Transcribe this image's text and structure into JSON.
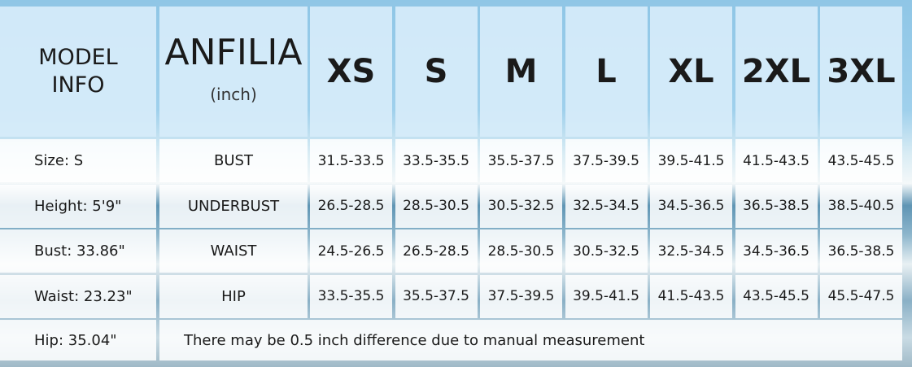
{
  "header": {
    "model_info": "MODEL INFO",
    "brand": "ANFILIA",
    "unit": "(inch)",
    "sizes": [
      "XS",
      "S",
      "M",
      "L",
      "XL",
      "2XL",
      "3XL"
    ]
  },
  "model_info": [
    "Size: S",
    "Height: 5'9\"",
    "Bust: 33.86\"",
    "Waist: 23.23\"",
    "Hip: 35.04\""
  ],
  "table": {
    "rows": [
      {
        "label": "BUST",
        "values": [
          "31.5-33.5",
          "33.5-35.5",
          "35.5-37.5",
          "37.5-39.5",
          "39.5-41.5",
          "41.5-43.5",
          "43.5-45.5"
        ]
      },
      {
        "label": "UNDERBUST",
        "values": [
          "26.5-28.5",
          "28.5-30.5",
          "30.5-32.5",
          "32.5-34.5",
          "34.5-36.5",
          "36.5-38.5",
          "38.5-40.5"
        ]
      },
      {
        "label": "WAIST",
        "values": [
          "24.5-26.5",
          "26.5-28.5",
          "28.5-30.5",
          "30.5-32.5",
          "32.5-34.5",
          "34.5-36.5",
          "36.5-38.5"
        ]
      },
      {
        "label": "HIP",
        "values": [
          "33.5-35.5",
          "35.5-37.5",
          "37.5-39.5",
          "39.5-41.5",
          "41.5-43.5",
          "43.5-45.5",
          "45.5-47.5"
        ]
      }
    ]
  },
  "note": "There may be 0.5 inch difference due to manual measurement"
}
